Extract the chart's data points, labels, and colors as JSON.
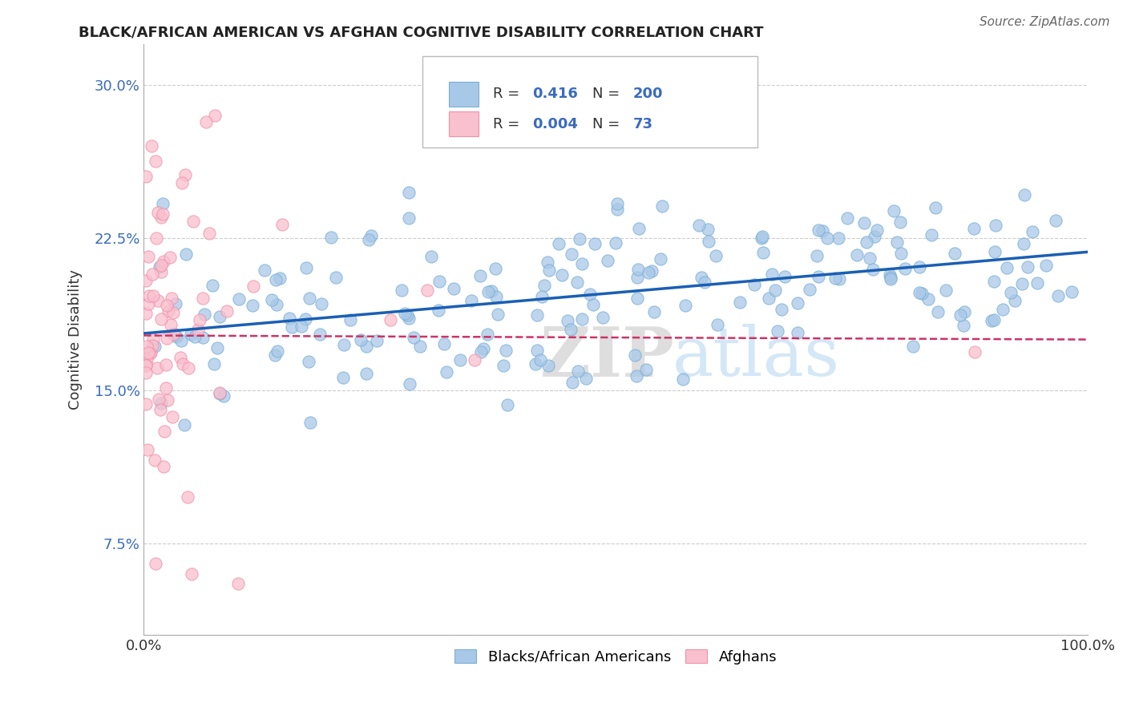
{
  "title": "BLACK/AFRICAN AMERICAN VS AFGHAN COGNITIVE DISABILITY CORRELATION CHART",
  "source": "Source: ZipAtlas.com",
  "ylabel": "Cognitive Disability",
  "xlabel": "",
  "watermark_zip": "ZIP",
  "watermark_atlas": "atlas",
  "legend_blue_R": "0.416",
  "legend_blue_N": "200",
  "legend_pink_R": "0.004",
  "legend_pink_N": "73",
  "legend_blue_label": "Blacks/African Americans",
  "legend_pink_label": "Afghans",
  "xlim": [
    0.0,
    1.0
  ],
  "ylim": [
    0.03,
    0.32
  ],
  "yticks": [
    0.075,
    0.15,
    0.225,
    0.3
  ],
  "ytick_labels": [
    "7.5%",
    "15.0%",
    "22.5%",
    "30.0%"
  ],
  "xticks": [
    0.0,
    1.0
  ],
  "xtick_labels": [
    "0.0%",
    "100.0%"
  ],
  "blue_color": "#a8c8e8",
  "blue_edge_color": "#7bafd4",
  "pink_color": "#f9c0ce",
  "pink_edge_color": "#f090a8",
  "trendline_blue": "#1a5fb4",
  "trendline_pink": "#cc3366",
  "background_color": "#ffffff",
  "grid_color": "#cccccc"
}
